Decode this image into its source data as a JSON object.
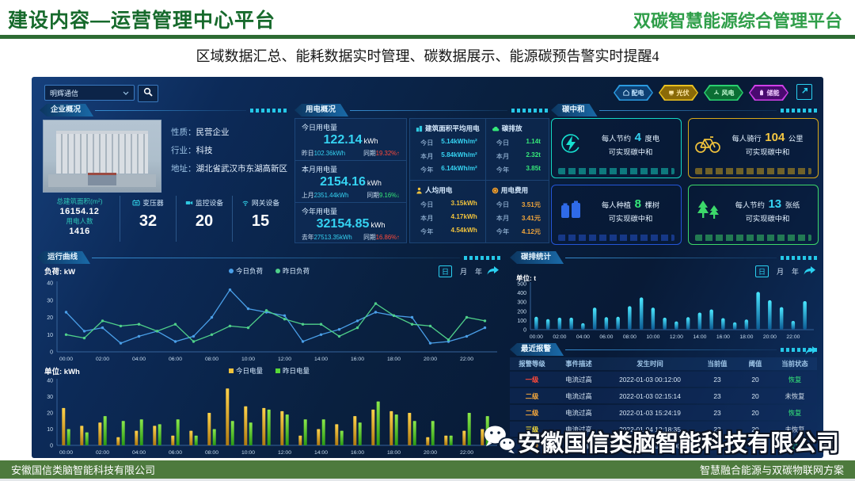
{
  "slide": {
    "title_left": "建设内容—运营管理中心平台",
    "title_right": "双碳智慧能源综合管理平台",
    "subtitle": "区域数据汇总、能耗数据实时管理、碳数据展示、能源碳预告警实时提醒4",
    "footer_left": "安徽国信类脑智能科技有限公司",
    "footer_right": "智慧融合能源与双碳物联网方案",
    "watermark": "安徽国信类脑智能科技有限公司"
  },
  "dashboard": {
    "search": {
      "selected": "明辉通信"
    },
    "top_buttons": [
      {
        "name": "distribution",
        "label": "配电",
        "icon": "home",
        "border": "#2a9ae0",
        "bg": "#0d3f72",
        "text": "#bfe4ff"
      },
      {
        "name": "solar",
        "label": "光伏",
        "icon": "solar",
        "border": "#e8c020",
        "bg": "#8a6a08",
        "text": "#ffe9a8"
      },
      {
        "name": "wind",
        "label": "风电",
        "icon": "wind",
        "border": "#2ad070",
        "bg": "#0b6e34",
        "text": "#c8ffd8"
      },
      {
        "name": "storage",
        "label": "储能",
        "icon": "storage",
        "border": "#d040e8",
        "bg": "#4a0a70",
        "text": "#f0c8ff"
      }
    ],
    "enterprise": {
      "panel_title": "企业概况",
      "info": [
        {
          "label": "性质：",
          "value": "民营企业"
        },
        {
          "label": "行业：",
          "value": "科技"
        },
        {
          "label": "地址：",
          "value": "湖北省武汉市东湖高新区"
        }
      ],
      "area_label": "总建筑面积(m²)",
      "area_value": "16154.12",
      "people_label": "用电人数",
      "people_value": "1416",
      "devices": [
        {
          "icon": "transformer",
          "label": "变压器",
          "value": "32"
        },
        {
          "icon": "camera",
          "label": "监控设备",
          "value": "20"
        },
        {
          "icon": "gateway",
          "label": "网关设备",
          "value": "15"
        }
      ]
    },
    "power_overview": {
      "panel_title": "用电概况",
      "blocks": [
        {
          "title": "今日用电量",
          "value": "122.14",
          "unit": "kWh",
          "prev_label": "昨日",
          "prev_value": "102.36kWh",
          "yoy_label": "同期",
          "yoy_value": "19.32%",
          "trend": "up"
        },
        {
          "title": "本月用电量",
          "value": "2154.16",
          "unit": "kWh",
          "prev_label": "上月",
          "prev_value": "2351.44kWh",
          "yoy_label": "同期",
          "yoy_value": "9.16%",
          "trend": "down"
        },
        {
          "title": "今年用电量",
          "value": "32154.85",
          "unit": "kWh",
          "prev_label": "去年",
          "prev_value": "27513.35kWh",
          "yoy_label": "同期",
          "yoy_value": "16.86%",
          "trend": "up"
        }
      ],
      "quads": [
        {
          "icon": "building",
          "title": "建筑面积平均用电",
          "value_color": "#35d3f2",
          "rows": [
            [
              "今日",
              "5.14kWh/m²"
            ],
            [
              "本月",
              "5.84kWh/m²"
            ],
            [
              "今年",
              "6.14kWh/m²"
            ]
          ]
        },
        {
          "icon": "cloud",
          "title": "碳排放",
          "value_color": "#35e87a",
          "rows": [
            [
              "今日",
              "1.14t"
            ],
            [
              "本月",
              "2.32t"
            ],
            [
              "今年",
              "3.85t"
            ]
          ]
        },
        {
          "icon": "person",
          "title": "人均用电",
          "value_color": "#f0c23c",
          "rows": [
            [
              "今日",
              "3.15kWh"
            ],
            [
              "本月",
              "4.17kWh"
            ],
            [
              "今年",
              "4.54kWh"
            ]
          ]
        },
        {
          "icon": "coin",
          "title": "用电费用",
          "value_color": "#f0a53c",
          "rows": [
            [
              "今日",
              "3.51元"
            ],
            [
              "本月",
              "3.41元"
            ],
            [
              "今年",
              "4.12元"
            ]
          ]
        }
      ]
    },
    "carbon_neutral": {
      "panel_title": "碳中和",
      "cards": [
        {
          "icon": "lightning",
          "prefix": "每人节约",
          "number": "4",
          "suffix": "度电",
          "line2": "可实现碳中和",
          "color": "#14d8c4",
          "num_color": "#35d3f2"
        },
        {
          "icon": "bicycle",
          "prefix": "每人骑行",
          "number": "104",
          "suffix": "公里",
          "line2": "可实现碳中和",
          "color": "#d8a818",
          "num_color": "#f5c842"
        },
        {
          "icon": "battery",
          "prefix": "每人种植",
          "number": "8",
          "suffix": "棵树",
          "line2": "可实现碳中和",
          "color": "#2456d8",
          "num_color": "#35e87a"
        },
        {
          "icon": "trees",
          "prefix": "每人节约",
          "number": "13",
          "suffix": "张纸",
          "line2": "可实现碳中和",
          "color": "#3cd86a",
          "num_color": "#35d3f2"
        }
      ]
    },
    "run_curve": {
      "panel_title": "运行曲线",
      "load_unit": "负荷: kW",
      "energy_unit": "单位: kWh",
      "tabs": [
        "日",
        "月",
        "年"
      ],
      "active_tab": "日"
    },
    "carbon_stats": {
      "panel_title": "碳排统计",
      "unit": "单位: t",
      "tabs": [
        "日",
        "月",
        "年"
      ],
      "active_tab": "日"
    },
    "alarms": {
      "panel_title": "最近报警",
      "headers": [
        "报警等级",
        "事件描述",
        "发生时间",
        "当前值",
        "阈值",
        "当前状态"
      ],
      "rows": [
        {
          "level": "一级",
          "level_color": "#ff4a3a",
          "desc": "电流过高",
          "time": "2022-01-03 00:12:00",
          "current": "23",
          "threshold": "20",
          "status": "恢复",
          "status_color": "#35e87a"
        },
        {
          "level": "二级",
          "level_color": "#f0a53c",
          "desc": "电流过高",
          "time": "2022-01-03 02:15:14",
          "current": "23",
          "threshold": "20",
          "status": "未恢复",
          "status_color": "#d0dce8"
        },
        {
          "level": "二级",
          "level_color": "#f0a53c",
          "desc": "电流过高",
          "time": "2022-01-03 15:24:19",
          "current": "23",
          "threshold": "20",
          "status": "恢复",
          "status_color": "#35e87a"
        },
        {
          "level": "三级",
          "level_color": "#f0d83c",
          "desc": "电流过高",
          "time": "2022-01-04 12:18:35",
          "current": "23",
          "threshold": "20",
          "status": "未恢复",
          "status_color": "#d0dce8"
        },
        {
          "level": "二级",
          "level_color": "#f0a53c",
          "desc": "电流过高",
          "time": "2022-01-05 08:12:00",
          "current": "23",
          "threshold": "20",
          "status": "恢复",
          "status_color": "#35e87a"
        }
      ]
    }
  },
  "chart_data": [
    {
      "id": "load",
      "type": "line",
      "title": "运行曲线-负荷",
      "ylabel": "负荷: kW",
      "ylim": [
        0,
        40
      ],
      "yticks": [
        0,
        10,
        20,
        30,
        40
      ],
      "grid": false,
      "legend_position": "top-center",
      "x": [
        "00:00",
        "01:00",
        "02:00",
        "03:00",
        "04:00",
        "05:00",
        "06:00",
        "07:00",
        "08:00",
        "09:00",
        "10:00",
        "11:00",
        "12:00",
        "13:00",
        "14:00",
        "15:00",
        "16:00",
        "17:00",
        "18:00",
        "19:00",
        "20:00",
        "21:00",
        "22:00",
        "23:00"
      ],
      "series": [
        {
          "name": "今日负荷",
          "color": "#4a9fe8",
          "values": [
            23,
            12,
            14,
            5,
            9,
            12,
            6,
            9,
            20,
            36,
            25,
            23,
            21,
            6,
            10,
            13,
            18,
            23,
            21,
            20,
            5,
            6,
            9,
            14
          ]
        },
        {
          "name": "昨日负荷",
          "color": "#4fd08a",
          "values": [
            10,
            8,
            18,
            15,
            16,
            12,
            16,
            6,
            10,
            15,
            14,
            24,
            19,
            16,
            16,
            9,
            14,
            28,
            21,
            16,
            15,
            7,
            20,
            18
          ]
        }
      ]
    },
    {
      "id": "energy",
      "type": "bar",
      "title": "运行曲线-电量",
      "ylabel": "单位: kWh",
      "ylim": [
        0,
        40
      ],
      "yticks": [
        0,
        10,
        20,
        30,
        40
      ],
      "grid": false,
      "legend_position": "top-center",
      "x": [
        "00:00",
        "01:00",
        "02:00",
        "03:00",
        "04:00",
        "05:00",
        "06:00",
        "07:00",
        "08:00",
        "09:00",
        "10:00",
        "11:00",
        "12:00",
        "13:00",
        "14:00",
        "15:00",
        "16:00",
        "17:00",
        "18:00",
        "19:00",
        "20:00",
        "21:00",
        "22:00",
        "23:00"
      ],
      "series": [
        {
          "name": "今日电量",
          "color": "#f0c23c",
          "color_top": "#ffd24a",
          "color_bottom": "#b07a10",
          "values": [
            23,
            12,
            14,
            5,
            9,
            12,
            6,
            9,
            20,
            35,
            24,
            23,
            21,
            6,
            10,
            13,
            18,
            22,
            21,
            20,
            5,
            6,
            9,
            10
          ]
        },
        {
          "name": "昨日电量",
          "color": "#58d838",
          "color_top": "#8ae84a",
          "color_bottom": "#2a9a14",
          "values": [
            10,
            8,
            18,
            15,
            16,
            13,
            16,
            6,
            10,
            15,
            14,
            22,
            19,
            16,
            16,
            9,
            14,
            27,
            19,
            15,
            15,
            6,
            20,
            18
          ]
        }
      ]
    },
    {
      "id": "carbon",
      "type": "bar",
      "title": "碳排统计",
      "ylabel": "单位: t",
      "ylim": [
        0,
        500
      ],
      "yticks": [
        0,
        100,
        200,
        300,
        400,
        500
      ],
      "grid": false,
      "legend_position": "none",
      "x": [
        "00:00",
        "01:00",
        "02:00",
        "03:00",
        "04:00",
        "05:00",
        "06:00",
        "07:00",
        "08:00",
        "09:00",
        "10:00",
        "11:00",
        "12:00",
        "13:00",
        "14:00",
        "15:00",
        "16:00",
        "17:00",
        "18:00",
        "19:00",
        "20:00",
        "21:00",
        "22:00",
        "23:00"
      ],
      "series": [
        {
          "name": "碳排放",
          "color": "#25c8e8",
          "color_top": "#4ae8ff",
          "color_bottom": "#0c5a94",
          "values": [
            140,
            115,
            130,
            130,
            70,
            240,
            135,
            140,
            255,
            350,
            240,
            130,
            90,
            135,
            185,
            220,
            125,
            80,
            110,
            410,
            320,
            245,
            95,
            310
          ]
        }
      ]
    }
  ]
}
